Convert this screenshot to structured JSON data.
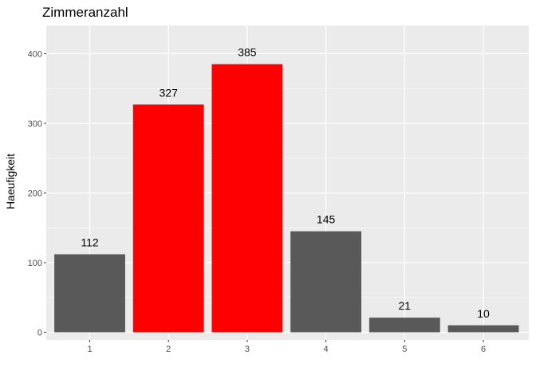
{
  "chart_data": {
    "type": "bar",
    "title": "Zimmeranzahl",
    "xlabel": "",
    "ylabel": "Haeufigkeit",
    "categories": [
      "1",
      "2",
      "3",
      "4",
      "5",
      "6"
    ],
    "values": [
      112,
      327,
      385,
      145,
      21,
      10
    ],
    "data_labels": [
      "112",
      "327",
      "385",
      "145",
      "21",
      "10"
    ],
    "highlighted": [
      false,
      true,
      true,
      false,
      false,
      false
    ],
    "ylim": [
      0,
      440
    ],
    "yticks": [
      0,
      100,
      200,
      300,
      400
    ],
    "ytick_labels": [
      "0",
      "100",
      "200",
      "300",
      "400"
    ],
    "grid": true,
    "colors": {
      "panel_background": "#EBEBEB",
      "major_grid": "#FFFFFF",
      "bar_default": "#595959",
      "bar_highlight": "#FF0000",
      "tick_text": "#4D4D4D",
      "tick_mark": "#333333"
    }
  }
}
